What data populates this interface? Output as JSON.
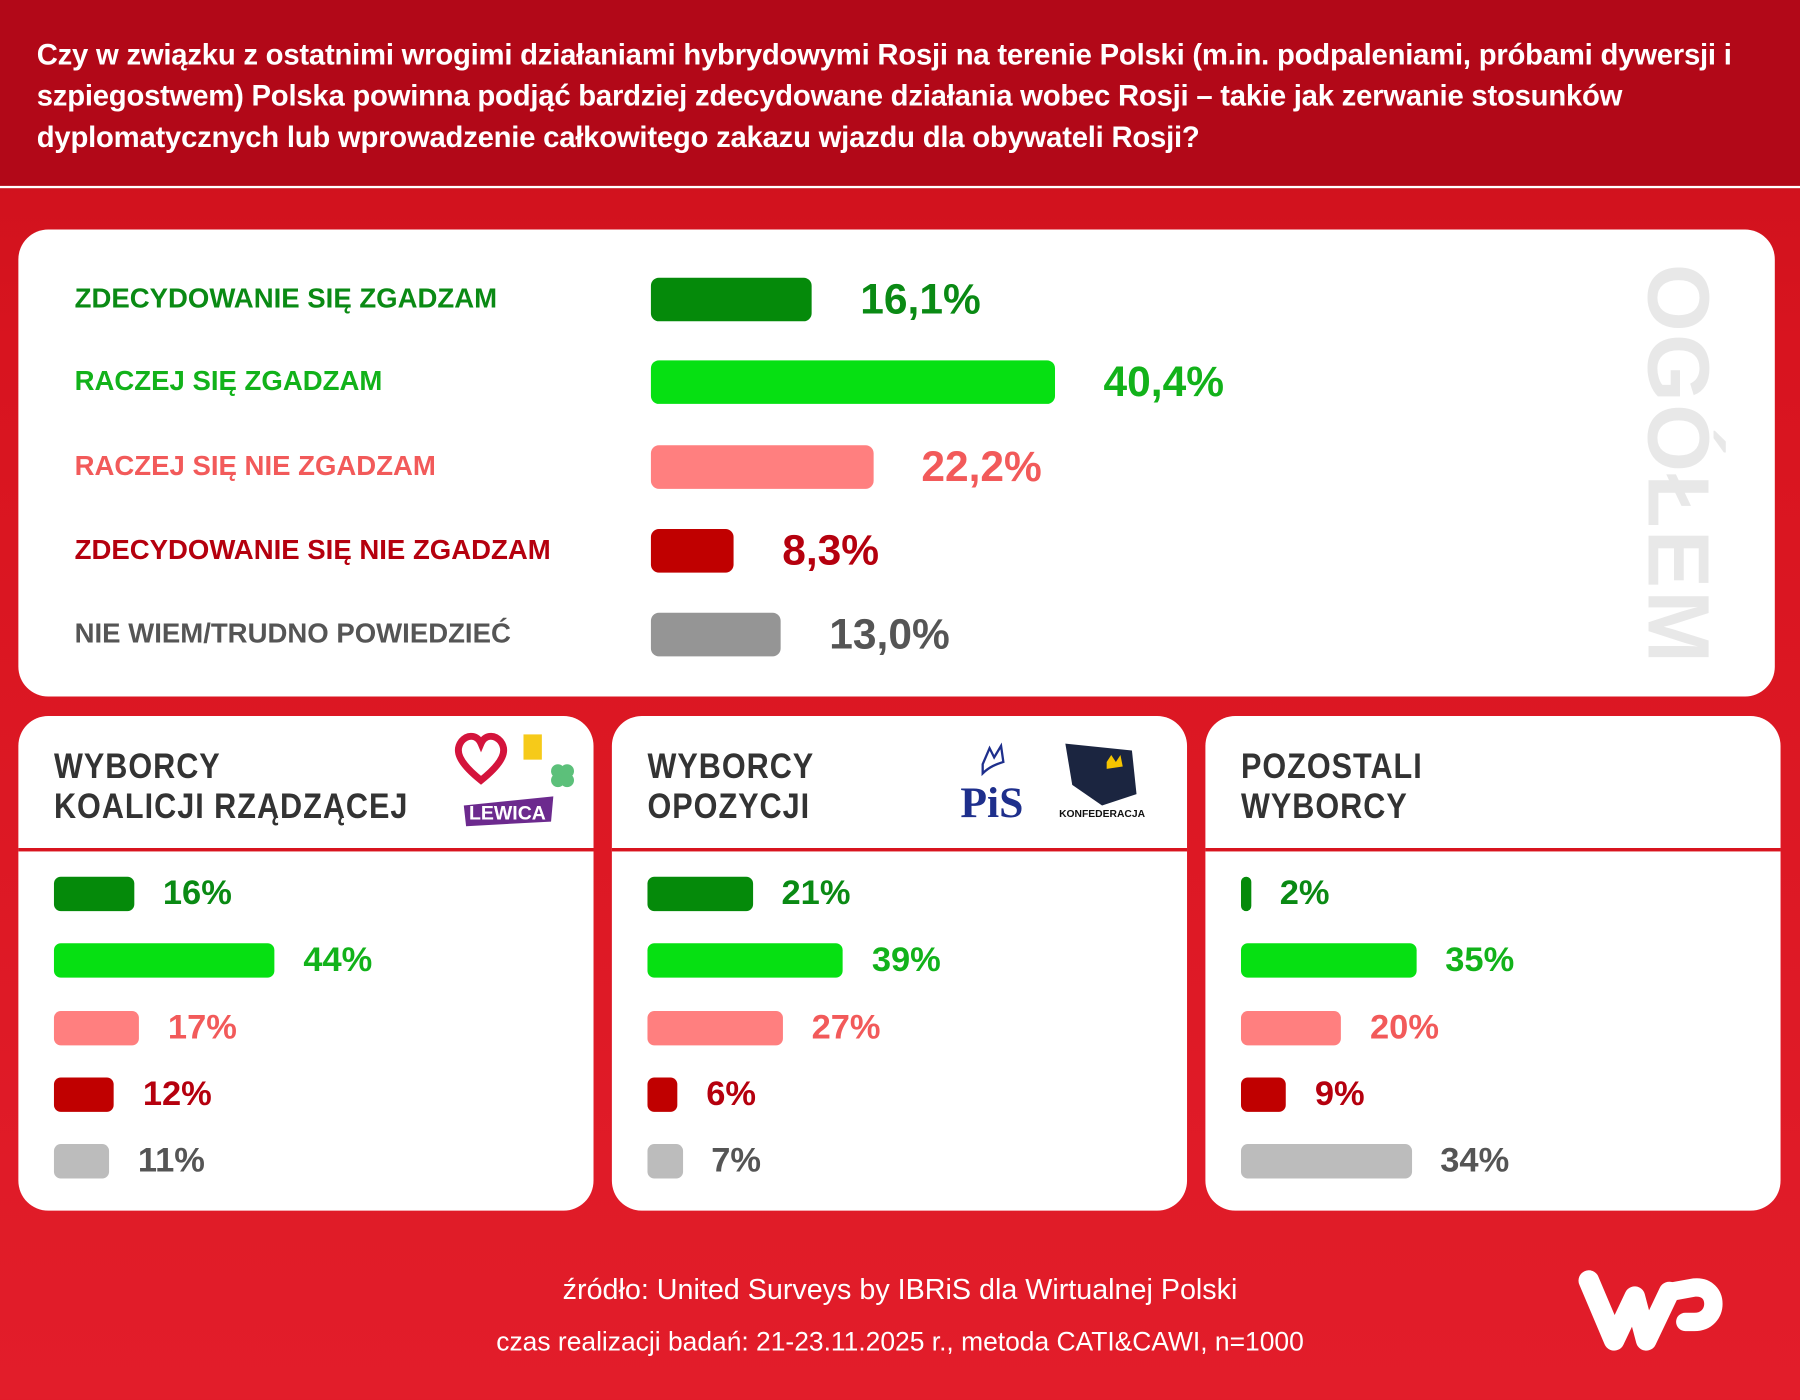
{
  "header": {
    "title": "Czy w związku z ostatnimi wrogimi działaniami hybrydowymi Rosji na terenie Polski (m.in. podpaleniami, próbami dywersji i szpiegostwem) Polska powinna podjąć bardziej zdecydowane działania wobec Rosji – takie jak zerwanie stosunków dyplomatycznych lub wprowadzenie całkowitego zakazu wjazdu dla obywateli Rosji?"
  },
  "colors": {
    "strongly_agree": "#058a0a",
    "agree": "#06e012",
    "disagree": "#ff7f7f",
    "strongly_disagree": "#c00000",
    "dont_know_main": "#959595",
    "dont_know_sub": "#bcbcbc",
    "label_strongly_agree": "#0a8a14",
    "label_agree": "#12b21a",
    "label_disagree": "#f25a5a",
    "label_strongly_disagree": "#b5000e",
    "label_dont_know": "#555555",
    "background": "#d8141f"
  },
  "chart_data": [
    {
      "type": "bar",
      "orientation": "horizontal",
      "title": "OGÓŁEM",
      "categories": [
        "ZDECYDOWANIE SIĘ ZGADZAM",
        "RACZEJ SIĘ ZGADZAM",
        "RACZEJ SIĘ NIE ZGADZAM",
        "ZDECYDOWANIE SIĘ NIE ZGADZAM",
        "NIE WIEM/TRUDNO POWIEDZIEĆ"
      ],
      "values": [
        16.1,
        40.4,
        22.2,
        8.3,
        13.0
      ],
      "data_labels": [
        "16,1%",
        "40,4%",
        "22,2%",
        "8,3%",
        "13,0%"
      ]
    },
    {
      "type": "bar",
      "orientation": "horizontal",
      "title": "WYBORCY KOALICJI RZĄDZĄCEJ",
      "title_lines": [
        "WYBORCY",
        "KOALICJI RZĄDZĄCEJ"
      ],
      "logos": [
        "KO heart",
        "Polska 2050",
        "PSL clover",
        "LEWICA"
      ],
      "values": [
        16,
        44,
        17,
        12,
        11
      ],
      "data_labels": [
        "16%",
        "44%",
        "17%",
        "12%",
        "11%"
      ]
    },
    {
      "type": "bar",
      "orientation": "horizontal",
      "title": "WYBORCY OPOZYCJI",
      "title_lines": [
        "WYBORCY",
        "OPOZYCJI"
      ],
      "logos": [
        "PiS",
        "KONFEDERACJA"
      ],
      "values": [
        21,
        39,
        27,
        6,
        7
      ],
      "data_labels": [
        "21%",
        "39%",
        "27%",
        "6%",
        "7%"
      ]
    },
    {
      "type": "bar",
      "orientation": "horizontal",
      "title": "POZOSTALI WYBORCY",
      "title_lines": [
        "POZOSTALI",
        "WYBORCY"
      ],
      "values": [
        2,
        35,
        20,
        9,
        34
      ],
      "data_labels": [
        "2%",
        "35%",
        "20%",
        "9%",
        "34%"
      ]
    }
  ],
  "logos": {
    "lewica": "LEWICA",
    "pis": "PiS",
    "konfederacja": "KONFEDERACJA",
    "wp": "WP"
  },
  "footer": {
    "source": "źródło: United Surveys by IBRiS dla Wirtualnej Polski",
    "method": "czas realizacji badań: 21-23.11.2025 r., metoda CATI&CAWI, n=1000"
  }
}
